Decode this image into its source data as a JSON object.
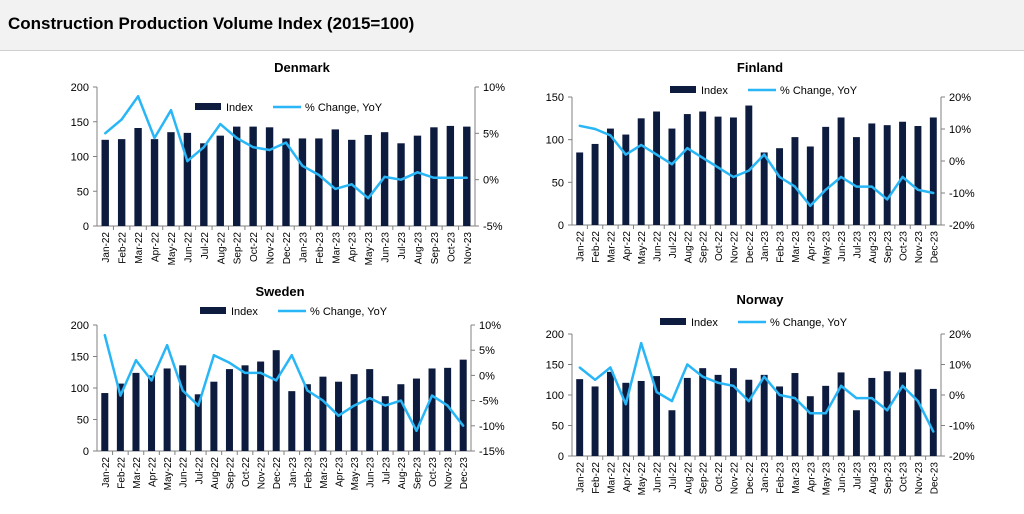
{
  "title": "Construction Production Volume Index (2015=100)",
  "legend": {
    "index": "Index",
    "change": "% Change, YoY"
  },
  "colors": {
    "bar": "#0d1b3e",
    "line": "#29b6f6",
    "axis": "#808080",
    "header_bg": "#f2f2f2"
  },
  "chart_data": [
    {
      "type": "bar+line",
      "title": "Denmark",
      "categories": [
        "Jan-22",
        "Feb-22",
        "Mar-22",
        "Apr-22",
        "May-22",
        "Jun-22",
        "Jul-22",
        "Aug-22",
        "Sep-22",
        "Oct-22",
        "Nov-22",
        "Dec-22",
        "Jan-23",
        "Feb-23",
        "Mar-23",
        "Apr-23",
        "May-23",
        "Jun-23",
        "Jul-23",
        "Aug-23",
        "Sep-23",
        "Oct-23",
        "Nov-23"
      ],
      "series": [
        {
          "name": "Index",
          "type": "bar",
          "axis": "left",
          "values": [
            124,
            125,
            141,
            125,
            135,
            134,
            119,
            130,
            143,
            143,
            142,
            126,
            126,
            126,
            139,
            124,
            131,
            135,
            119,
            130,
            142,
            144,
            143
          ]
        },
        {
          "name": "% Change, YoY",
          "type": "line",
          "axis": "right",
          "values": [
            5,
            6.5,
            9,
            4.5,
            7.5,
            2,
            3.5,
            6,
            4.5,
            3.5,
            3.2,
            4,
            1.5,
            0.5,
            -1,
            -0.5,
            -2,
            0.3,
            0,
            0.8,
            0.2,
            0.2,
            0.2
          ]
        }
      ],
      "ylim": [
        0,
        200
      ],
      "yticks": [
        0,
        50,
        100,
        150,
        200
      ],
      "yticks_labels": [
        "0",
        "50",
        "100",
        "150",
        "200"
      ],
      "y2lim": [
        -5,
        10
      ],
      "y2ticks": [
        -5,
        0,
        5,
        10
      ],
      "y2ticks_labels": [
        "-5%",
        "0%",
        "5%",
        "10%"
      ],
      "legend_position": "top"
    },
    {
      "type": "bar+line",
      "title": "Finland",
      "categories": [
        "Jan-22",
        "Feb-22",
        "Mar-22",
        "Apr-22",
        "May-22",
        "Jun-22",
        "Jul-22",
        "Aug-22",
        "Sep-22",
        "Oct-22",
        "Nov-22",
        "Dec-22",
        "Jan-23",
        "Feb-23",
        "Mar-23",
        "Apr-23",
        "May-23",
        "Jun-23",
        "Jul-23",
        "Aug-23",
        "Sep-23",
        "Oct-23",
        "Nov-23",
        "Dec-23"
      ],
      "series": [
        {
          "name": "Index",
          "type": "bar",
          "axis": "left",
          "values": [
            85,
            95,
            113,
            106,
            125,
            133,
            113,
            130,
            133,
            127,
            126,
            140,
            85,
            90,
            103,
            92,
            115,
            126,
            103,
            119,
            117,
            121,
            116,
            126
          ]
        },
        {
          "name": "% Change, YoY",
          "type": "line",
          "axis": "right",
          "values": [
            11,
            10,
            8,
            2,
            5,
            2,
            -1,
            4,
            1,
            -2,
            -5,
            -3,
            2,
            -5,
            -8,
            -14,
            -9,
            -5,
            -8,
            -8,
            -12,
            -5,
            -9,
            -10
          ]
        }
      ],
      "ylim": [
        0,
        150
      ],
      "yticks": [
        0,
        50,
        100,
        150
      ],
      "yticks_labels": [
        "0",
        "50",
        "100",
        "150"
      ],
      "y2lim": [
        -20,
        20
      ],
      "y2ticks": [
        -20,
        -10,
        0,
        10,
        20
      ],
      "y2ticks_labels": [
        "-20%",
        "-10%",
        "0%",
        "10%",
        "20%"
      ],
      "legend_position": "top"
    },
    {
      "type": "bar+line",
      "title": "Sweden",
      "categories": [
        "Jan-22",
        "Feb-22",
        "Mar-22",
        "Apr-22",
        "May-22",
        "Jun-22",
        "Jul-22",
        "Aug-22",
        "Sep-22",
        "Oct-22",
        "Nov-22",
        "Dec-22",
        "Jan-23",
        "Feb-23",
        "Mar-23",
        "Apr-23",
        "May-23",
        "Jun-23",
        "Jul-23",
        "Aug-23",
        "Sep-23",
        "Oct-23",
        "Nov-23",
        "Dec-23"
      ],
      "series": [
        {
          "name": "Index",
          "type": "bar",
          "axis": "left",
          "values": [
            92,
            107,
            124,
            120,
            131,
            136,
            90,
            110,
            130,
            136,
            142,
            160,
            95,
            106,
            118,
            110,
            122,
            130,
            87,
            106,
            115,
            131,
            132,
            145
          ]
        },
        {
          "name": "% Change, YoY",
          "type": "line",
          "axis": "right",
          "values": [
            8,
            -4,
            3,
            -1,
            6,
            -3,
            -6,
            4,
            2.5,
            0.5,
            0.5,
            -1,
            4,
            -3,
            -5,
            -8,
            -6,
            -4.5,
            -6,
            -5,
            -11,
            -4,
            -6,
            -10
          ]
        }
      ],
      "ylim": [
        0,
        200
      ],
      "yticks": [
        0,
        50,
        100,
        150,
        200
      ],
      "yticks_labels": [
        "0",
        "50",
        "100",
        "150",
        "200"
      ],
      "y2lim": [
        -15,
        10
      ],
      "y2ticks": [
        -15,
        -10,
        -5,
        0,
        5,
        10
      ],
      "y2ticks_labels": [
        "-15%",
        "-10%",
        "-5%",
        "0%",
        "5%",
        "10%"
      ],
      "legend_position": "top"
    },
    {
      "type": "bar+line",
      "title": "Norway",
      "categories": [
        "Jan-22",
        "Feb-22",
        "Mar-22",
        "Apr-22",
        "May-22",
        "Jun-22",
        "Jul-22",
        "Aug-22",
        "Sep-22",
        "Oct-22",
        "Nov-22",
        "Dec-22",
        "Jan-23",
        "Feb-23",
        "Mar-23",
        "Apr-23",
        "May-23",
        "Jun-23",
        "Jul-23",
        "Aug-23",
        "Sep-23",
        "Oct-23",
        "Nov-23",
        "Dec-23"
      ],
      "series": [
        {
          "name": "Index",
          "type": "bar",
          "axis": "left",
          "values": [
            126,
            114,
            138,
            120,
            123,
            131,
            75,
            128,
            144,
            133,
            144,
            125,
            133,
            114,
            136,
            98,
            115,
            137,
            75,
            128,
            139,
            137,
            142,
            110
          ]
        },
        {
          "name": "% Change, YoY",
          "type": "line",
          "axis": "right",
          "values": [
            9,
            5,
            9,
            -3,
            17,
            1,
            -2,
            10,
            6,
            4,
            3,
            -2,
            6,
            0,
            -1,
            -6,
            -6,
            3,
            -1,
            -1,
            -5,
            3,
            -2,
            -12
          ]
        }
      ],
      "ylim": [
        0,
        200
      ],
      "yticks": [
        0,
        50,
        100,
        150,
        200
      ],
      "yticks_labels": [
        "0",
        "50",
        "100",
        "150",
        "200"
      ],
      "y2lim": [
        -20,
        20
      ],
      "y2ticks": [
        -20,
        -10,
        0,
        10,
        20
      ],
      "y2ticks_labels": [
        "-20%",
        "-10%",
        "0%",
        "10%",
        "20%"
      ],
      "legend_position": "top"
    }
  ]
}
